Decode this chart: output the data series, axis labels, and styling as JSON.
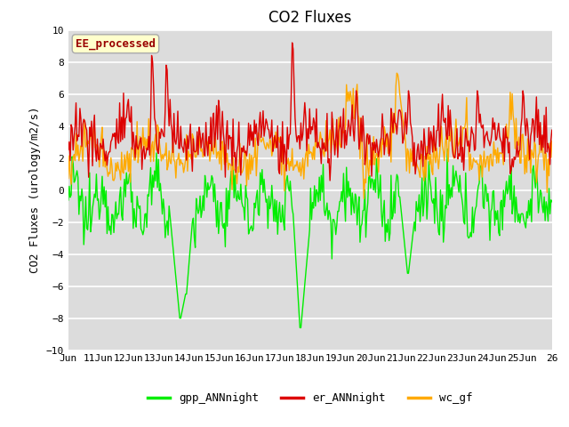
{
  "title": "CO2 Fluxes",
  "ylabel": "CO2 Fluxes (urology/m2/s)",
  "ylim": [
    -10,
    10
  ],
  "yticks": [
    -10,
    -8,
    -6,
    -4,
    -2,
    0,
    2,
    4,
    6,
    8,
    10
  ],
  "plot_bg": "#dcdcdc",
  "legend_entries": [
    "gpp_ANNnight",
    "er_ANNnight",
    "wc_gf"
  ],
  "legend_colors": [
    "#00ee00",
    "#dd0000",
    "#ffaa00"
  ],
  "annotation_text": "EE_processed",
  "annotation_color": "#990000",
  "annotation_bg": "#ffffcc",
  "annotation_border": "#aaaaaa",
  "line_colors": [
    "#00ee00",
    "#dd0000",
    "#ffaa00"
  ],
  "n_points": 500,
  "title_fontsize": 12,
  "tick_fontsize": 8,
  "label_fontsize": 9,
  "legend_fontsize": 9
}
